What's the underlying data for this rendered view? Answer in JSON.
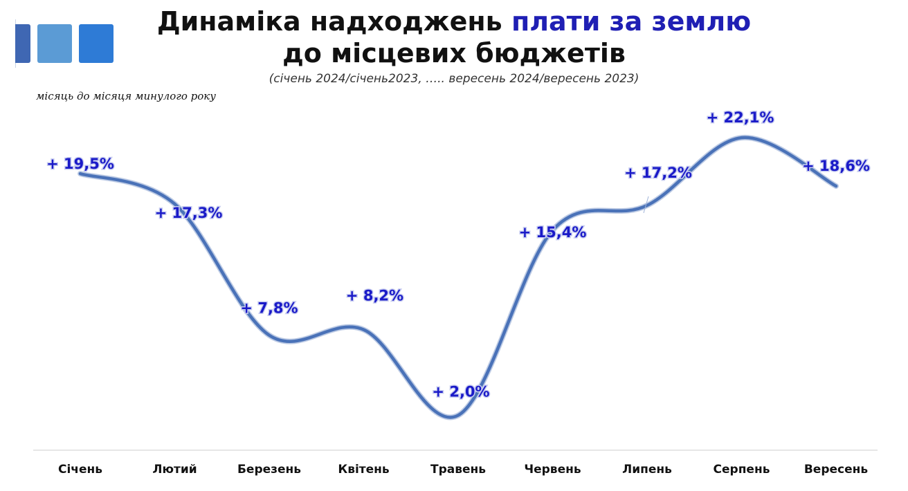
{
  "title": {
    "part1": "Динаміка надходжень",
    "highlight": "плати за землю",
    "line2": "до місцевих бюджетів"
  },
  "subtitle": "(січень 2024/січень2023, ….. вересень 2024/вересень 2023)",
  "note": "місяць до місяця минулого року",
  "colors": {
    "line": "#4a72b8",
    "label": "#1a1ac8",
    "highlight": "#1f1fb4"
  },
  "chart_data": {
    "type": "line",
    "categories": [
      "Січень",
      "Лютий",
      "Березень",
      "Квітень",
      "Травень",
      "Червень",
      "Липень",
      "Серпень",
      "Вересень"
    ],
    "values": [
      19.5,
      17.3,
      7.8,
      8.2,
      2.0,
      15.4,
      17.2,
      22.1,
      18.6
    ],
    "data_labels": [
      "+ 19,5%",
      "+ 17,3%",
      "+ 7,8%",
      "+ 8,2%",
      "+ 2,0%",
      "+ 15,4%",
      "+ 17,2%",
      "+ 22,1%",
      "+ 18,6%"
    ],
    "title": "",
    "xlabel": "",
    "ylabel": "",
    "grid": false,
    "legend": "none"
  }
}
